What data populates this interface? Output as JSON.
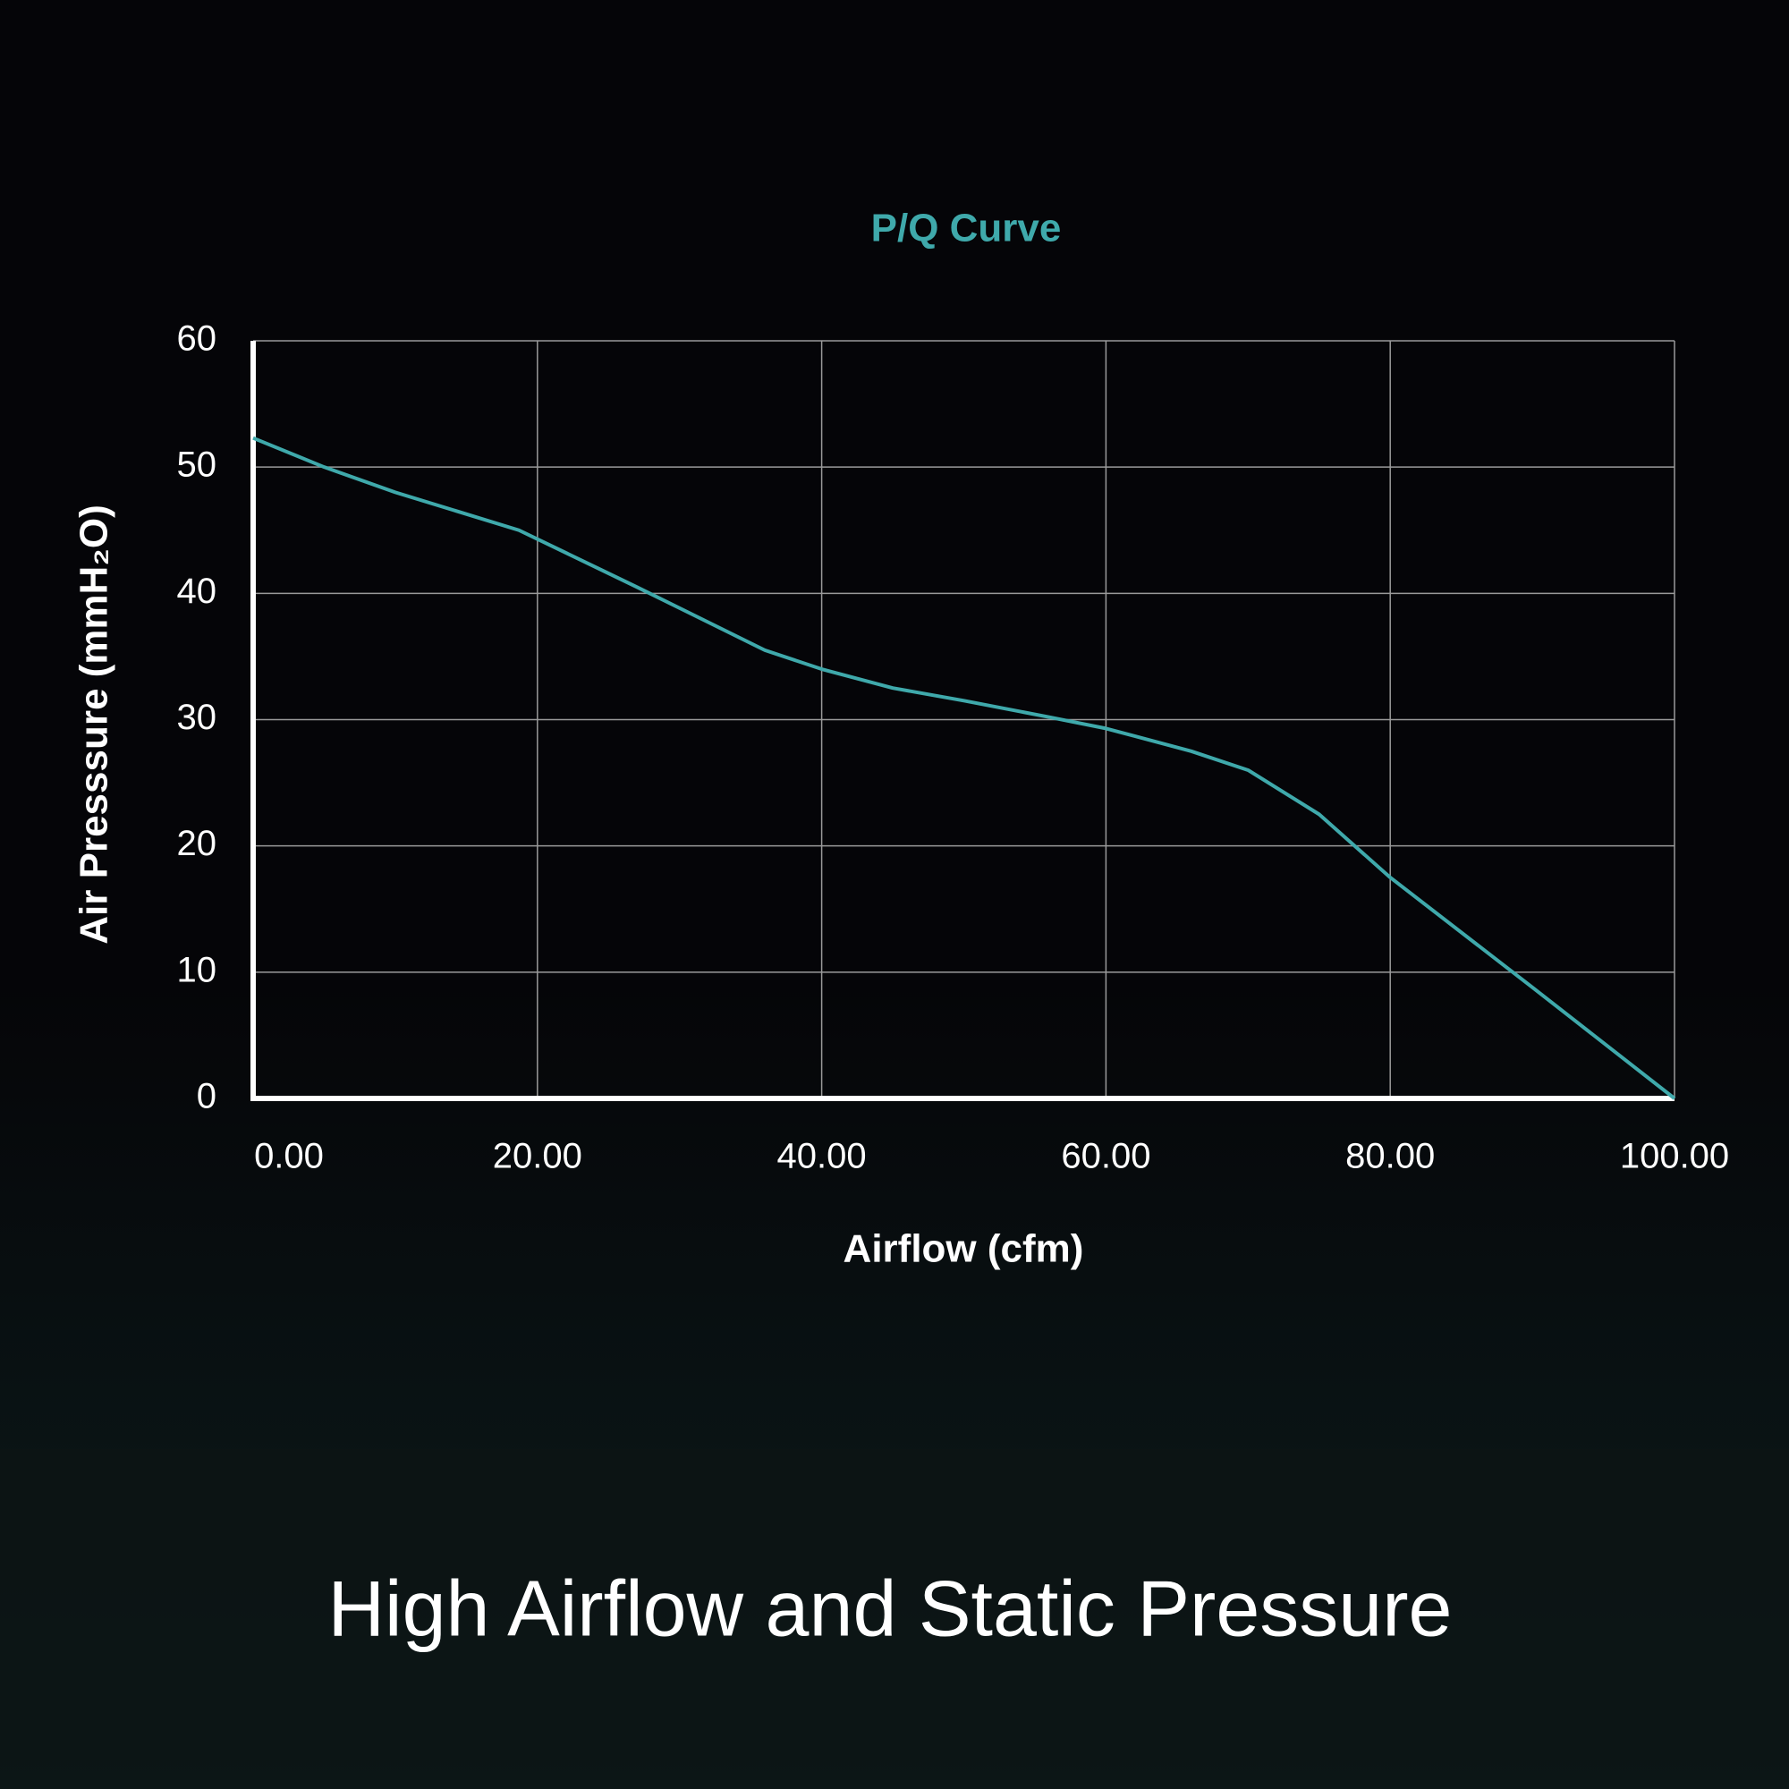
{
  "chart_data": {
    "type": "line",
    "title": "P/Q Curve",
    "x_label": "Airflow (cfm)",
    "y_label": "Air Presssure (mmH₂O)",
    "x": [
      0,
      5,
      10,
      18.7,
      27,
      36,
      40,
      45,
      50,
      56,
      60,
      66,
      70,
      75,
      80,
      90,
      100
    ],
    "values": [
      52.3,
      50,
      48,
      45,
      40.5,
      35.5,
      34,
      32.5,
      31.5,
      30.2,
      29.3,
      27.5,
      26,
      22.5,
      17.5,
      8.8,
      0
    ],
    "color": "#3fa9ab",
    "xlim": [
      0,
      100
    ],
    "xticks": [
      {
        "value": 0,
        "label": "0.00"
      },
      {
        "value": 20,
        "label": "20.00"
      },
      {
        "value": 40,
        "label": "40.00"
      },
      {
        "value": 60,
        "label": "60.00"
      },
      {
        "value": 80,
        "label": "80.00"
      },
      {
        "value": 100,
        "label": "100.00"
      }
    ],
    "ylim": [
      0,
      60
    ],
    "yticks": [
      0,
      10,
      20,
      30,
      40,
      50,
      60
    ],
    "grid": true
  },
  "banner": {
    "text": "High Airflow and Static Pressure"
  }
}
